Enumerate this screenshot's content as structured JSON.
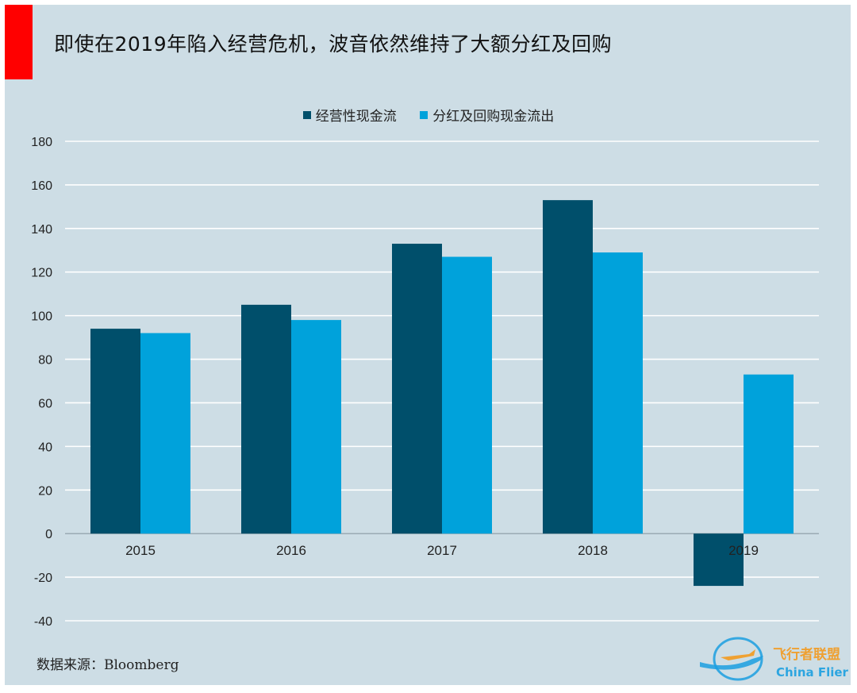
{
  "title": "即使在2019年陷入经营危机，波音依然维持了大额分红及回购",
  "source": "数据来源：Bloomberg",
  "colors": {
    "series1": "#004f6b",
    "series2": "#00a2db",
    "accent": "#ff0000",
    "background": "#cddde5"
  },
  "watermark": {
    "cn": "飞行者联盟",
    "en": "China Flier"
  },
  "chart_data": {
    "type": "bar",
    "categories": [
      "2015",
      "2016",
      "2017",
      "2018",
      "2019"
    ],
    "series": [
      {
        "name": "经营性现金流",
        "values": [
          94,
          105,
          133,
          153,
          -24
        ]
      },
      {
        "name": "分红及回购现金流出",
        "values": [
          92,
          98,
          127,
          129,
          73
        ]
      }
    ],
    "ylim": [
      -40,
      180
    ],
    "yticks": [
      "180",
      "160",
      "140",
      "120",
      "100",
      "80",
      "60",
      "40",
      "20",
      "0",
      "-20",
      "-40"
    ],
    "grid": true,
    "legend_position": "top-center"
  }
}
